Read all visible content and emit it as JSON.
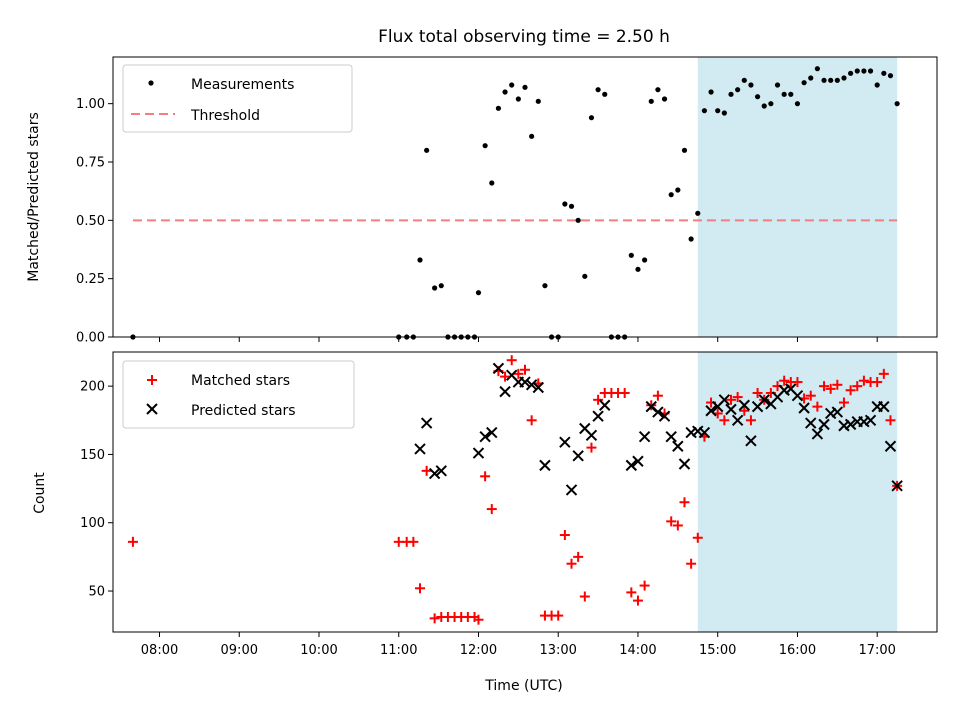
{
  "chart_data": [
    {
      "type": "scatter",
      "title": "Flux total observing time = 2.50 h",
      "xlabel": "",
      "ylabel": "Matched/Predicted stars",
      "xlim": [
        "07:25",
        "17:45"
      ],
      "ylim": [
        0,
        1.2
      ],
      "yticks": [
        "0.00",
        "0.25",
        "0.50",
        "0.75",
        "1.00"
      ],
      "grid": false,
      "legend_placement": "top-left",
      "highlight_span": {
        "x": [
          "14:45",
          "17:15"
        ],
        "color": "#add8e6"
      },
      "threshold": {
        "name": "Threshold",
        "y": 0.5,
        "x": [
          "07:40",
          "17:15"
        ],
        "color": "#f08080",
        "style": "dashed"
      },
      "series": [
        {
          "name": "Measurements",
          "color": "#000000",
          "marker": "dot",
          "points": [
            [
              "07:40",
              0.0
            ],
            [
              "11:00",
              0.0
            ],
            [
              "11:06",
              0.0
            ],
            [
              "11:11",
              0.0
            ],
            [
              "11:16",
              0.33
            ],
            [
              "11:21",
              0.8
            ],
            [
              "11:27",
              0.21
            ],
            [
              "11:32",
              0.22
            ],
            [
              "11:37",
              0.0
            ],
            [
              "11:42",
              0.0
            ],
            [
              "11:47",
              0.0
            ],
            [
              "11:52",
              0.0
            ],
            [
              "11:57",
              0.0
            ],
            [
              "12:00",
              0.19
            ],
            [
              "12:05",
              0.82
            ],
            [
              "12:10",
              0.66
            ],
            [
              "12:15",
              0.98
            ],
            [
              "12:20",
              1.05
            ],
            [
              "12:25",
              1.08
            ],
            [
              "12:30",
              1.02
            ],
            [
              "12:35",
              1.07
            ],
            [
              "12:40",
              0.86
            ],
            [
              "12:45",
              1.01
            ],
            [
              "12:50",
              0.22
            ],
            [
              "12:55",
              0.0
            ],
            [
              "13:00",
              0.0
            ],
            [
              "13:05",
              0.57
            ],
            [
              "13:10",
              0.56
            ],
            [
              "13:15",
              0.5
            ],
            [
              "13:20",
              0.26
            ],
            [
              "13:25",
              0.94
            ],
            [
              "13:30",
              1.06
            ],
            [
              "13:35",
              1.04
            ],
            [
              "13:40",
              0.0
            ],
            [
              "13:45",
              0.0
            ],
            [
              "13:50",
              0.0
            ],
            [
              "13:55",
              0.35
            ],
            [
              "14:00",
              0.29
            ],
            [
              "14:05",
              0.33
            ],
            [
              "14:10",
              1.01
            ],
            [
              "14:15",
              1.06
            ],
            [
              "14:20",
              1.02
            ],
            [
              "14:25",
              0.61
            ],
            [
              "14:30",
              0.63
            ],
            [
              "14:35",
              0.8
            ],
            [
              "14:40",
              0.42
            ],
            [
              "14:45",
              0.53
            ],
            [
              "14:50",
              0.97
            ],
            [
              "14:55",
              1.05
            ],
            [
              "15:00",
              0.97
            ],
            [
              "15:05",
              0.96
            ],
            [
              "15:10",
              1.04
            ],
            [
              "15:15",
              1.06
            ],
            [
              "15:20",
              1.1
            ],
            [
              "15:25",
              1.08
            ],
            [
              "15:30",
              1.03
            ],
            [
              "15:35",
              0.99
            ],
            [
              "15:40",
              1.0
            ],
            [
              "15:45",
              1.08
            ],
            [
              "15:50",
              1.04
            ],
            [
              "15:55",
              1.04
            ],
            [
              "16:00",
              1.0
            ],
            [
              "16:05",
              1.09
            ],
            [
              "16:10",
              1.11
            ],
            [
              "16:15",
              1.15
            ],
            [
              "16:20",
              1.1
            ],
            [
              "16:25",
              1.1
            ],
            [
              "16:30",
              1.1
            ],
            [
              "16:35",
              1.11
            ],
            [
              "16:40",
              1.13
            ],
            [
              "16:45",
              1.14
            ],
            [
              "16:50",
              1.14
            ],
            [
              "16:55",
              1.14
            ],
            [
              "17:00",
              1.08
            ],
            [
              "17:05",
              1.13
            ],
            [
              "17:10",
              1.12
            ],
            [
              "17:15",
              1.0
            ]
          ]
        }
      ]
    },
    {
      "type": "scatter",
      "title": "",
      "xlabel": "Time (UTC)",
      "ylabel": "Count",
      "xlim": [
        "07:25",
        "17:45"
      ],
      "ylim": [
        20,
        225
      ],
      "yticks": [
        "50",
        "100",
        "150",
        "200"
      ],
      "xticks": [
        "08:00",
        "09:00",
        "10:00",
        "11:00",
        "12:00",
        "13:00",
        "14:00",
        "15:00",
        "16:00",
        "17:00"
      ],
      "grid": false,
      "legend_placement": "top-left",
      "highlight_span": {
        "x": [
          "14:45",
          "17:15"
        ],
        "color": "#add8e6"
      },
      "series": [
        {
          "name": "Matched stars",
          "color": "#ff0000",
          "marker": "plus",
          "points": [
            [
              "07:40",
              86
            ],
            [
              "11:00",
              86
            ],
            [
              "11:06",
              86
            ],
            [
              "11:11",
              86
            ],
            [
              "11:16",
              52
            ],
            [
              "11:21",
              138
            ],
            [
              "11:27",
              30
            ],
            [
              "11:32",
              31
            ],
            [
              "11:37",
              31
            ],
            [
              "11:42",
              31
            ],
            [
              "11:47",
              31
            ],
            [
              "11:52",
              31
            ],
            [
              "11:57",
              31
            ],
            [
              "12:00",
              29
            ],
            [
              "12:05",
              134
            ],
            [
              "12:10",
              110
            ],
            [
              "12:15",
              211
            ],
            [
              "12:20",
              207
            ],
            [
              "12:25",
              219
            ],
            [
              "12:30",
              209
            ],
            [
              "12:35",
              212
            ],
            [
              "12:40",
              175
            ],
            [
              "12:45",
              202
            ],
            [
              "12:50",
              32
            ],
            [
              "12:55",
              32
            ],
            [
              "13:00",
              32
            ],
            [
              "13:05",
              91
            ],
            [
              "13:10",
              70
            ],
            [
              "13:15",
              75
            ],
            [
              "13:20",
              46
            ],
            [
              "13:25",
              155
            ],
            [
              "13:30",
              190
            ],
            [
              "13:35",
              195
            ],
            [
              "13:40",
              195
            ],
            [
              "13:45",
              195
            ],
            [
              "13:50",
              195
            ],
            [
              "13:55",
              49
            ],
            [
              "14:00",
              43
            ],
            [
              "14:05",
              54
            ],
            [
              "14:10",
              186
            ],
            [
              "14:15",
              193
            ],
            [
              "14:20",
              180
            ],
            [
              "14:25",
              101
            ],
            [
              "14:30",
              98
            ],
            [
              "14:35",
              115
            ],
            [
              "14:40",
              70
            ],
            [
              "14:45",
              89
            ],
            [
              "14:50",
              163
            ],
            [
              "14:55",
              188
            ],
            [
              "15:00",
              180
            ],
            [
              "15:05",
              175
            ],
            [
              "15:10",
              190
            ],
            [
              "15:15",
              192
            ],
            [
              "15:20",
              182
            ],
            [
              "15:25",
              175
            ],
            [
              "15:30",
              195
            ],
            [
              "15:35",
              190
            ],
            [
              "15:40",
              195
            ],
            [
              "15:45",
              200
            ],
            [
              "15:50",
              204
            ],
            [
              "15:55",
              203
            ],
            [
              "16:00",
              203
            ],
            [
              "16:05",
              191
            ],
            [
              "16:10",
              193
            ],
            [
              "16:15",
              185
            ],
            [
              "16:20",
              200
            ],
            [
              "16:25",
              198
            ],
            [
              "16:30",
              201
            ],
            [
              "16:35",
              188
            ],
            [
              "16:40",
              197
            ],
            [
              "16:45",
              200
            ],
            [
              "16:50",
              204
            ],
            [
              "16:55",
              203
            ],
            [
              "17:00",
              203
            ],
            [
              "17:05",
              209
            ],
            [
              "17:10",
              175
            ],
            [
              "17:15",
              127
            ]
          ]
        },
        {
          "name": "Predicted stars",
          "color": "#000000",
          "marker": "x",
          "points": [
            [
              "11:16",
              154
            ],
            [
              "11:21",
              173
            ],
            [
              "11:27",
              136
            ],
            [
              "11:32",
              138
            ],
            [
              "12:00",
              151
            ],
            [
              "12:05",
              163
            ],
            [
              "12:10",
              166
            ],
            [
              "12:15",
              213
            ],
            [
              "12:20",
              196
            ],
            [
              "12:25",
              208
            ],
            [
              "12:30",
              203
            ],
            [
              "12:35",
              203
            ],
            [
              "12:40",
              201
            ],
            [
              "12:45",
              199
            ],
            [
              "12:50",
              142
            ],
            [
              "13:05",
              159
            ],
            [
              "13:10",
              124
            ],
            [
              "13:15",
              149
            ],
            [
              "13:20",
              169
            ],
            [
              "13:25",
              164
            ],
            [
              "13:30",
              178
            ],
            [
              "13:35",
              186
            ],
            [
              "13:55",
              142
            ],
            [
              "14:00",
              145
            ],
            [
              "14:05",
              163
            ],
            [
              "14:10",
              185
            ],
            [
              "14:15",
              181
            ],
            [
              "14:20",
              178
            ],
            [
              "14:25",
              163
            ],
            [
              "14:30",
              156
            ],
            [
              "14:35",
              143
            ],
            [
              "14:40",
              166
            ],
            [
              "14:45",
              167
            ],
            [
              "14:50",
              166
            ],
            [
              "14:55",
              182
            ],
            [
              "15:00",
              185
            ],
            [
              "15:05",
              190
            ],
            [
              "15:10",
              183
            ],
            [
              "15:15",
              175
            ],
            [
              "15:20",
              186
            ],
            [
              "15:25",
              160
            ],
            [
              "15:30",
              185
            ],
            [
              "15:35",
              190
            ],
            [
              "15:40",
              187
            ],
            [
              "15:45",
              192
            ],
            [
              "15:50",
              197
            ],
            [
              "15:55",
              198
            ],
            [
              "16:00",
              193
            ],
            [
              "16:05",
              184
            ],
            [
              "16:10",
              173
            ],
            [
              "16:15",
              165
            ],
            [
              "16:20",
              172
            ],
            [
              "16:25",
              180
            ],
            [
              "16:30",
              181
            ],
            [
              "16:35",
              171
            ],
            [
              "16:40",
              172
            ],
            [
              "16:45",
              174
            ],
            [
              "16:50",
              174
            ],
            [
              "16:55",
              175
            ],
            [
              "17:00",
              185
            ],
            [
              "17:05",
              185
            ],
            [
              "17:10",
              156
            ],
            [
              "17:15",
              127
            ]
          ]
        }
      ]
    }
  ]
}
